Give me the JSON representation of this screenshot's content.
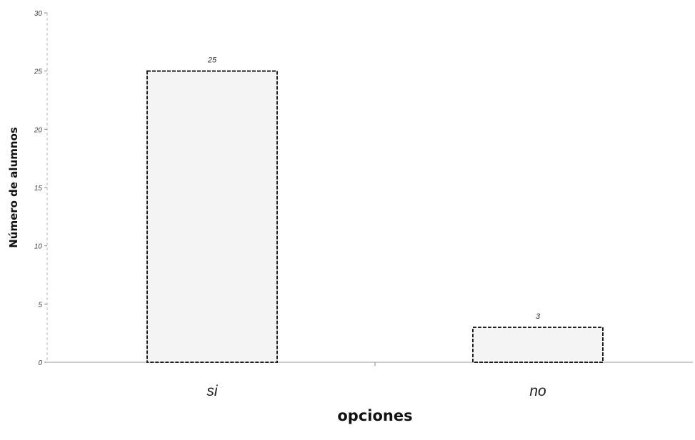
{
  "chart_data": {
    "type": "bar",
    "categories": [
      "si",
      "no"
    ],
    "values": [
      25,
      3
    ],
    "data_labels": [
      "25",
      "3"
    ],
    "title": "",
    "xlabel": "opciones",
    "ylabel": "Número de alumnos",
    "ylim": [
      0,
      30
    ],
    "yticks": [
      0,
      5,
      10,
      15,
      20,
      25,
      30
    ],
    "ytick_labels": [
      "0",
      "5",
      "10",
      "15",
      "20",
      "25",
      "30"
    ],
    "grid": false,
    "legend": "none",
    "colors": {
      "bar_fill": "#f4f4f4",
      "bar_stroke": "#222222",
      "axis": "#9a9a9a"
    }
  }
}
